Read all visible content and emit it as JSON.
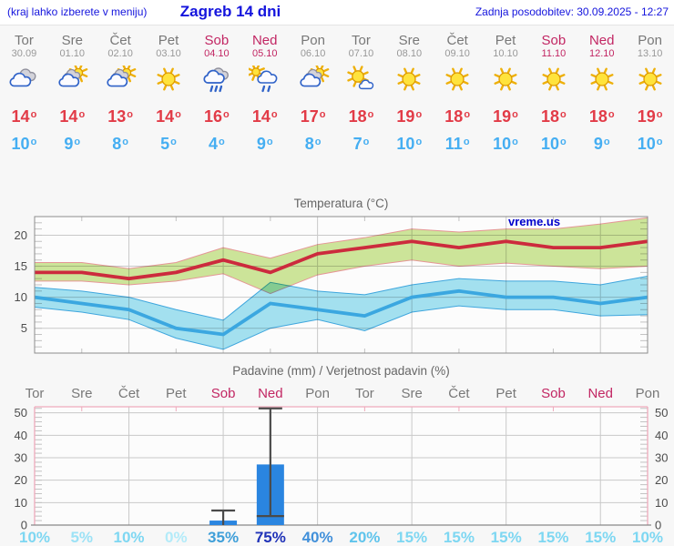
{
  "header": {
    "left": "(kraj lahko izberete v meniju)",
    "title": "Zagreb 14 dni",
    "right": "Zadnja posodobitev: 30.09.2025 - 12:27"
  },
  "deg_symbol": "o",
  "colors": {
    "header_text": "#1414dd",
    "weekday": "#787878",
    "weekend": "#c22663",
    "date": "#989898",
    "high": "#e23b47",
    "low": "#45aef2",
    "axis_text": "#4d4d4d",
    "title_text": "#666666",
    "grid": "#c9c9c9",
    "tick": "#c2c2c2",
    "border": "#8c8c8c",
    "plot_bg": "#fcfcfc",
    "pink": "#eeaabb",
    "whisker": "#4a4a4a",
    "watermark": "#0000cc"
  },
  "days": [
    {
      "name": "Tor",
      "date": "30.09",
      "weekend": false,
      "icon": "cloudy",
      "high": "14",
      "low": "10"
    },
    {
      "name": "Sre",
      "date": "01.10",
      "weekend": false,
      "icon": "sun-cloud",
      "high": "14",
      "low": "9"
    },
    {
      "name": "Čet",
      "date": "02.10",
      "weekend": false,
      "icon": "sun-cloud",
      "high": "13",
      "low": "8"
    },
    {
      "name": "Pet",
      "date": "03.10",
      "weekend": false,
      "icon": "sun",
      "high": "14",
      "low": "5"
    },
    {
      "name": "Sob",
      "date": "04.10",
      "weekend": true,
      "icon": "rain",
      "high": "16",
      "low": "4"
    },
    {
      "name": "Ned",
      "date": "05.10",
      "weekend": true,
      "icon": "sun-rain",
      "high": "14",
      "low": "9"
    },
    {
      "name": "Pon",
      "date": "06.10",
      "weekend": false,
      "icon": "sun-cloud",
      "high": "17",
      "low": "8"
    },
    {
      "name": "Tor",
      "date": "07.10",
      "weekend": false,
      "icon": "sun-small-cloud",
      "high": "18",
      "low": "7"
    },
    {
      "name": "Sre",
      "date": "08.10",
      "weekend": false,
      "icon": "sun",
      "high": "19",
      "low": "10"
    },
    {
      "name": "Čet",
      "date": "09.10",
      "weekend": false,
      "icon": "sun",
      "high": "18",
      "low": "11"
    },
    {
      "name": "Pet",
      "date": "10.10",
      "weekend": false,
      "icon": "sun",
      "high": "19",
      "low": "10"
    },
    {
      "name": "Sob",
      "date": "11.10",
      "weekend": true,
      "icon": "sun",
      "high": "18",
      "low": "10"
    },
    {
      "name": "Ned",
      "date": "12.10",
      "weekend": true,
      "icon": "sun",
      "high": "18",
      "low": "9"
    },
    {
      "name": "Pon",
      "date": "13.10",
      "weekend": false,
      "icon": "sun",
      "high": "19",
      "low": "10"
    }
  ],
  "chart_data": [
    {
      "type": "line",
      "title": "Temperatura (°C)",
      "x_labels": [
        "Tor",
        "Sre",
        "Čet",
        "Pet",
        "Sob",
        "Ned",
        "Pon",
        "Tor",
        "Sre",
        "Čet",
        "Pet",
        "Sob",
        "Ned",
        "Pon"
      ],
      "ylim": [
        1,
        23
      ],
      "yticks": [
        5,
        10,
        15,
        20
      ],
      "grid": true,
      "legend_position": "none",
      "watermark": "vreme.us",
      "series": [
        {
          "name": "max temperatura",
          "color": "#cc2b3d",
          "values": [
            14,
            14,
            13,
            14,
            16,
            14,
            17,
            18,
            19,
            18,
            19,
            18,
            18,
            19
          ],
          "band_upper": [
            15.6,
            15.6,
            14.6,
            15.6,
            18,
            16.3,
            18.5,
            19.6,
            21,
            20.5,
            21,
            21,
            21.8,
            22.8
          ],
          "band_lower": [
            12.6,
            12.6,
            12,
            12.6,
            13.8,
            10.6,
            13.6,
            15,
            16,
            15,
            15.5,
            15,
            14.6,
            15
          ],
          "band_fill": "#cfe79b",
          "band_stroke": "#e89898"
        },
        {
          "name": "min temperatura",
          "color": "#3ba7e0",
          "values": [
            10,
            9,
            8,
            5,
            4,
            9,
            8,
            7,
            10,
            11,
            10,
            10,
            9,
            10
          ],
          "band_upper": [
            11.6,
            11,
            10,
            8,
            6.3,
            12.4,
            11,
            10.4,
            12,
            13,
            12.6,
            12.6,
            12,
            13.4
          ],
          "band_lower": [
            8.4,
            7.6,
            6.4,
            3.4,
            1.6,
            5,
            6.4,
            4.6,
            7.6,
            8.6,
            8,
            8,
            7,
            7.2
          ],
          "band_fill": "#a5e3f2",
          "band_stroke": "#3fa8e0"
        }
      ]
    },
    {
      "type": "bar",
      "title": "Padavine (mm) / Verjetnost padavin (%)",
      "x_labels": [
        "Tor",
        "Sre",
        "Čet",
        "Pet",
        "Sob",
        "Ned",
        "Pon",
        "Tor",
        "Sre",
        "Čet",
        "Pet",
        "Sob",
        "Ned",
        "Pon"
      ],
      "ylim": [
        0,
        52.7
      ],
      "yticks": [
        0,
        10,
        20,
        30,
        40,
        50
      ],
      "bar_color": "#2a85e0",
      "values_mm": [
        0,
        0,
        0,
        0,
        2,
        27,
        0,
        0,
        0,
        0,
        0,
        0,
        0,
        0
      ],
      "whisker_high": [
        0,
        0,
        0,
        0,
        6.5,
        52,
        0,
        0,
        0,
        0,
        0,
        0,
        0,
        0
      ],
      "whisker_low": [
        0,
        0,
        0,
        0,
        0,
        4,
        0,
        0,
        0,
        0,
        0,
        0,
        0,
        0
      ],
      "probability_pct": [
        10,
        5,
        10,
        0,
        35,
        75,
        40,
        20,
        15,
        15,
        15,
        15,
        15,
        10
      ],
      "probability_labels": [
        "10%",
        "5%",
        "10%",
        "0%",
        "35%",
        "75%",
        "40%",
        "20%",
        "15%",
        "15%",
        "15%",
        "15%",
        "15%",
        "10%"
      ],
      "pct_colors": [
        "#7ed7f2",
        "#9ce2f6",
        "#7ed7f2",
        "#b3ebf9",
        "#3f9fd9",
        "#2033b8",
        "#4190da",
        "#5fc4ec",
        "#7ed7f2",
        "#7ed7f2",
        "#7ed7f2",
        "#7ed7f2",
        "#7ed7f2",
        "#7ed7f2"
      ]
    }
  ]
}
